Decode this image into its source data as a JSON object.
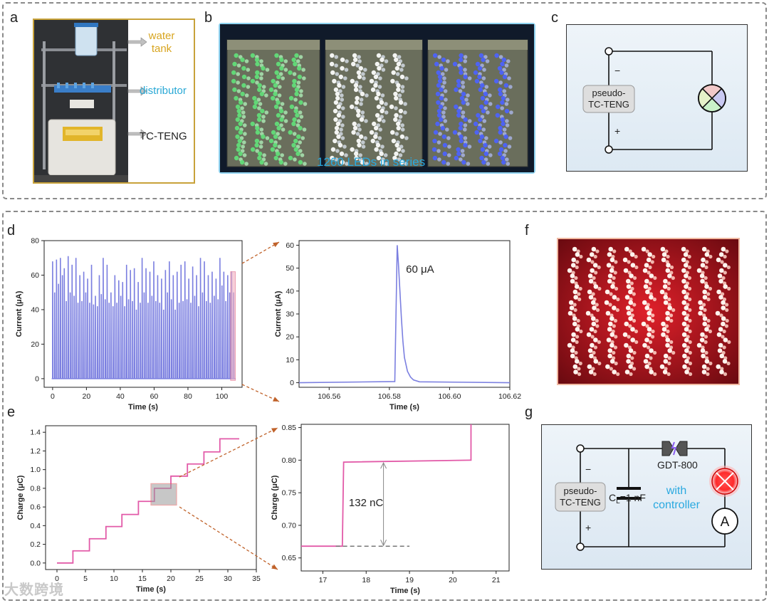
{
  "panels": {
    "a": {
      "label": "a",
      "callouts": [
        "water tank",
        "distributor",
        "TC-TENG"
      ],
      "colors": {
        "water": "#d8a520",
        "distributor": "#2aa9d6",
        "tceng": "#222222",
        "frame": "#c8a23a"
      }
    },
    "b": {
      "label": "b",
      "caption": "1260 LEDs in series",
      "caption_color": "#2aa9e0"
    },
    "c": {
      "label": "c",
      "source": "pseudo-TC-TENG",
      "source_lines": [
        "pseudo-",
        "TC-TENG"
      ],
      "minus": "−",
      "plus": "+"
    },
    "d": {
      "label": "d"
    },
    "e": {
      "label": "e"
    },
    "f": {
      "label": "f"
    },
    "g": {
      "label": "g",
      "source_lines": [
        "pseudo-",
        "TC-TENG"
      ],
      "minus": "−",
      "plus": "+",
      "gdt": "GDT-800",
      "cap_main": "C",
      "cap_sub": "L",
      "cap_value": "=1 nF",
      "controller_lines": [
        "with",
        "controller"
      ],
      "controller_color": "#2aa9e0",
      "ammeter": "A"
    }
  },
  "chart_data": [
    {
      "id": "d-left",
      "type": "line",
      "xlabel": "Time (s)",
      "ylabel": "Current (μA)",
      "xlim": [
        -5,
        112
      ],
      "ylim": [
        -5,
        80
      ],
      "xticks": [
        0,
        20,
        40,
        60,
        80,
        100
      ],
      "yticks": [
        0,
        20,
        40,
        60,
        80
      ],
      "color": "#7b7fe0",
      "series": [
        {
          "x": [
            0,
            1.2,
            2.3,
            3.5,
            4.6,
            5.8,
            6.9,
            8.1,
            9.2,
            10.4,
            11.5,
            12.7,
            13.8,
            15,
            16.1,
            17.3,
            18.4,
            19.6,
            20.7,
            21.9,
            23,
            24.2,
            25.3,
            26.5,
            27.6,
            28.8,
            29.9,
            31.1,
            32.2,
            33.4,
            34.5,
            35.7,
            36.8,
            38,
            39.1,
            40.3,
            41.4,
            42.6,
            43.7,
            44.9,
            46,
            47.2,
            48.3,
            49.5,
            50.6,
            51.8,
            52.9,
            54.1,
            55.2,
            56.4,
            57.5,
            58.7,
            59.8,
            61,
            62.1,
            63.3,
            64.4,
            65.6,
            66.7,
            67.9,
            69,
            70.2,
            71.3,
            72.5,
            73.6,
            74.8,
            75.9,
            77.1,
            78.2,
            79.4,
            80.5,
            81.7,
            82.8,
            84,
            85.1,
            86.3,
            87.4,
            88.6,
            89.7,
            90.9,
            92,
            93.2,
            94.3,
            95.5,
            96.6,
            97.8,
            98.9,
            100.1,
            101.2,
            102.4,
            103.5,
            104.7,
            105.8,
            107
          ],
          "peaks": [
            68,
            50,
            69,
            55,
            70,
            60,
            64,
            45,
            71,
            50,
            66,
            48,
            70,
            44,
            60,
            45,
            62,
            50,
            58,
            44,
            66,
            43,
            48,
            42,
            60,
            49,
            70,
            46,
            66,
            44,
            50,
            42,
            60,
            44,
            57,
            48,
            56,
            42,
            66,
            46,
            63,
            45,
            64,
            40,
            56,
            44,
            70,
            50,
            64,
            44,
            62,
            48,
            68,
            45,
            60,
            44,
            58,
            40,
            63,
            50,
            68,
            46,
            60,
            40,
            62,
            44,
            66,
            45,
            68,
            46,
            58,
            44,
            65,
            48,
            60,
            42,
            70,
            50,
            68,
            45,
            60,
            44,
            62,
            48,
            58,
            46,
            70,
            54,
            62,
            45,
            60,
            50,
            62,
            50
          ]
        }
      ]
    },
    {
      "id": "d-right",
      "type": "line",
      "xlabel": "Time (s)",
      "ylabel": "Current (μA)",
      "xlim": [
        106.55,
        106.62
      ],
      "ylim": [
        -2,
        62
      ],
      "xticks": [
        106.56,
        106.58,
        106.6,
        106.62
      ],
      "xtick_labels": [
        "106.56",
        "106.58",
        "106.60",
        "106.62"
      ],
      "yticks": [
        0,
        10,
        20,
        30,
        40,
        50,
        60
      ],
      "annotation": "60 μA",
      "color": "#7b7fe0",
      "series": [
        {
          "x": [
            106.55,
            106.5818,
            106.5822,
            106.5826,
            106.583,
            106.5835,
            106.584,
            106.5845,
            106.585,
            106.586,
            106.587,
            106.588,
            106.59,
            106.62
          ],
          "y": [
            0,
            0.5,
            30,
            60,
            52,
            40,
            28,
            18,
            11,
            5,
            2.5,
            1.2,
            0.4,
            0
          ]
        }
      ]
    },
    {
      "id": "e-left",
      "type": "line",
      "xlabel": "Time (s)",
      "ylabel": "Charge (μC)",
      "xlim": [
        -2,
        35
      ],
      "ylim": [
        -0.07,
        1.47
      ],
      "xticks": [
        0,
        5,
        10,
        15,
        20,
        25,
        30,
        35
      ],
      "yticks": [
        0.0,
        0.2,
        0.4,
        0.6,
        0.8,
        1.0,
        1.2,
        1.4
      ],
      "ytick_labels": [
        "0.0",
        "0.2",
        "0.4",
        "0.6",
        "0.8",
        "1.0",
        "1.2",
        "1.4"
      ],
      "color": "#e25aa8",
      "series": [
        {
          "step_x": [
            0,
            2.8,
            5.7,
            8.6,
            11.4,
            14.3,
            17.1,
            20.0,
            22.9,
            25.8,
            28.6,
            32.0
          ],
          "step_y": [
            0.0,
            0.13,
            0.26,
            0.39,
            0.52,
            0.66,
            0.8,
            0.93,
            1.06,
            1.19,
            1.33,
            1.33
          ]
        }
      ],
      "zoom_box": {
        "x": [
          16.5,
          21
        ],
        "y": [
          0.62,
          0.85
        ]
      }
    },
    {
      "id": "e-right",
      "type": "line",
      "xlabel": "Time (s)",
      "ylabel": "Charge (μC)",
      "xlim": [
        16.5,
        21.3
      ],
      "ylim": [
        0.63,
        0.855
      ],
      "xticks": [
        17,
        18,
        19,
        20,
        21
      ],
      "yticks": [
        0.65,
        0.7,
        0.75,
        0.8,
        0.85
      ],
      "ytick_labels": [
        "0.65",
        "0.70",
        "0.75",
        "0.80",
        "0.85"
      ],
      "annotation": "132 nC",
      "color": "#e25aa8",
      "series": [
        {
          "x": [
            16.5,
            17.45,
            17.48,
            20.4,
            20.42,
            20.42
          ],
          "y": [
            0.668,
            0.668,
            0.797,
            0.8,
            0.8,
            0.86
          ]
        }
      ],
      "ref_low": 0.668,
      "ref_high": 0.797
    }
  ],
  "watermark": "大数跨境"
}
